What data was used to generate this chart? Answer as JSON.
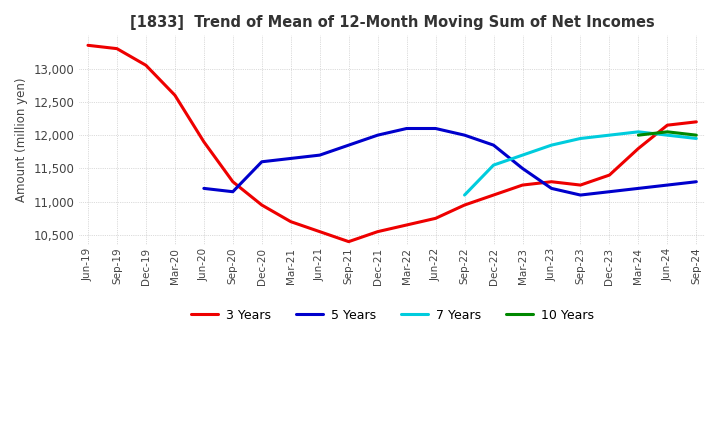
{
  "title": "[1833]  Trend of Mean of 12-Month Moving Sum of Net Incomes",
  "ylabel": "Amount (million yen)",
  "ylim": [
    10350,
    13500
  ],
  "yticks": [
    10500,
    11000,
    11500,
    12000,
    12500,
    13000
  ],
  "line_colors": {
    "3y": "#ee0000",
    "5y": "#0000cc",
    "7y": "#00ccdd",
    "10y": "#008800"
  },
  "legend_labels": [
    "3 Years",
    "5 Years",
    "7 Years",
    "10 Years"
  ],
  "x_labels": [
    "Jun-19",
    "Sep-19",
    "Dec-19",
    "Mar-20",
    "Jun-20",
    "Sep-20",
    "Dec-20",
    "Mar-21",
    "Jun-21",
    "Sep-21",
    "Dec-21",
    "Mar-22",
    "Jun-22",
    "Sep-22",
    "Dec-22",
    "Mar-23",
    "Jun-23",
    "Sep-23",
    "Dec-23",
    "Mar-24",
    "Jun-24",
    "Sep-24"
  ],
  "series_3y": [
    13350,
    13300,
    13050,
    12600,
    11900,
    11300,
    10950,
    10700,
    10550,
    10400,
    10550,
    10650,
    10750,
    10950,
    11100,
    11250,
    11300,
    11250,
    11400,
    11800,
    12150,
    12200
  ],
  "series_5y": [
    null,
    null,
    null,
    null,
    11200,
    11150,
    11600,
    11650,
    11700,
    11850,
    12000,
    12100,
    12100,
    12000,
    11850,
    11500,
    11200,
    11100,
    11150,
    11200,
    11250,
    11300
  ],
  "series_7y": [
    null,
    null,
    null,
    null,
    null,
    null,
    null,
    null,
    null,
    null,
    null,
    null,
    null,
    11100,
    11550,
    11700,
    11850,
    11950,
    12000,
    12050,
    12000,
    11950
  ],
  "series_10y": [
    null,
    null,
    null,
    null,
    null,
    null,
    null,
    null,
    null,
    null,
    null,
    null,
    null,
    null,
    null,
    null,
    null,
    null,
    null,
    12000,
    12050,
    12000
  ],
  "background_color": "#ffffff",
  "grid_color": "#bbbbbb"
}
